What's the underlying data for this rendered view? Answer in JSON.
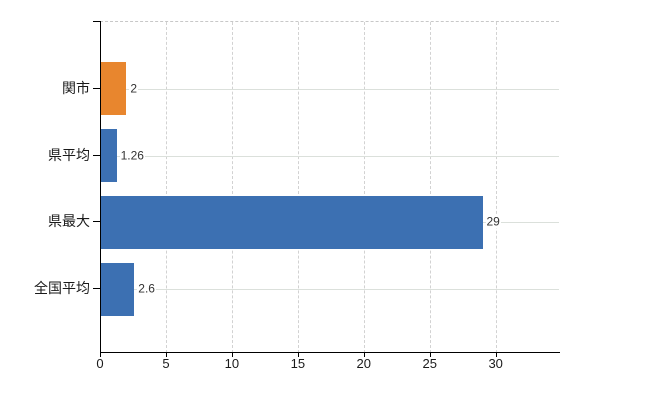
{
  "chart_data": {
    "type": "bar",
    "orientation": "horizontal",
    "title": "",
    "xlabel": "",
    "ylabel": "",
    "categories": [
      "関市",
      "県平均",
      "県最大",
      "全国平均"
    ],
    "values": [
      2,
      1.26,
      29,
      2.6
    ],
    "value_labels": [
      "2",
      "1.26",
      "29",
      "2.6"
    ],
    "bar_colors": [
      "#e8862e",
      "#3c70b2",
      "#3c70b2",
      "#3c70b2"
    ],
    "x_ticks": [
      0,
      5,
      10,
      15,
      20,
      25,
      30
    ],
    "xlim": [
      0,
      34.8
    ],
    "grid": true,
    "legend": false,
    "colors": {
      "background": "#ffffff",
      "axis": "#000000",
      "vertical_grid": "#d2d2d2",
      "horizontal_grid": "#dbe0db",
      "top_border": "#c8c8c8",
      "label_text": "#1a1a1a",
      "value_text": "#333333"
    }
  }
}
